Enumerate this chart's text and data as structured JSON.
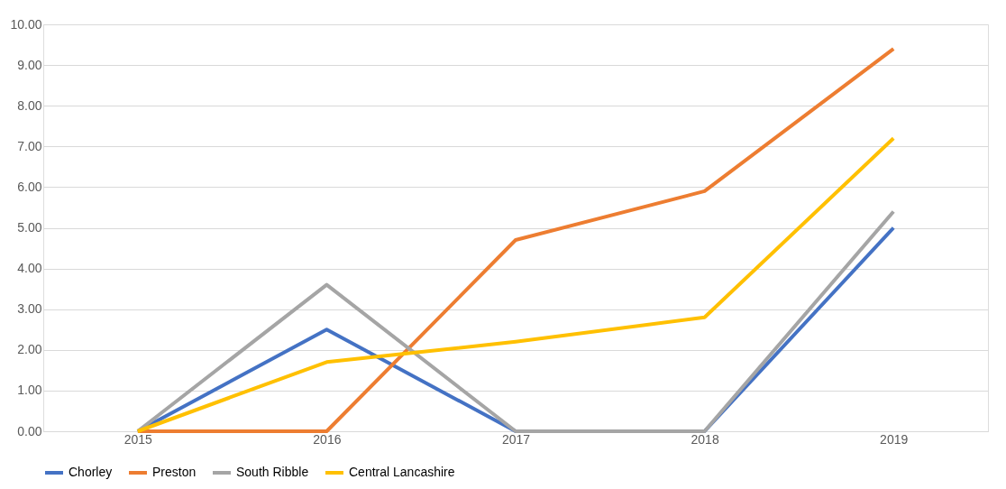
{
  "chart_data": {
    "type": "line",
    "categories": [
      "2015",
      "2016",
      "2017",
      "2018",
      "2019"
    ],
    "series": [
      {
        "name": "Chorley",
        "color": "#4472c4",
        "values": [
          0,
          2.5,
          0,
          0,
          5.0
        ]
      },
      {
        "name": "Preston",
        "color": "#ed7d31",
        "values": [
          0,
          0,
          4.7,
          5.9,
          9.4
        ]
      },
      {
        "name": "South Ribble",
        "color": "#a5a5a5",
        "values": [
          0,
          3.6,
          0,
          0,
          5.4
        ]
      },
      {
        "name": "Central Lancashire",
        "color": "#ffc000",
        "values": [
          0,
          1.7,
          2.2,
          2.8,
          7.2
        ]
      }
    ],
    "ylim": [
      0,
      10
    ],
    "yticks": [
      {
        "value": 0,
        "label": "0.00"
      },
      {
        "value": 1,
        "label": "1.00"
      },
      {
        "value": 2,
        "label": "2.00"
      },
      {
        "value": 3,
        "label": "3.00"
      },
      {
        "value": 4,
        "label": "4.00"
      },
      {
        "value": 5,
        "label": "5.00"
      },
      {
        "value": 6,
        "label": "6.00"
      },
      {
        "value": 7,
        "label": "7.00"
      },
      {
        "value": 8,
        "label": "8.00"
      },
      {
        "value": 9,
        "label": "9.00"
      },
      {
        "value": 10,
        "label": "10.00"
      }
    ],
    "grid": "y",
    "legend": "bottom",
    "marker": "none",
    "line_style": "solid"
  }
}
